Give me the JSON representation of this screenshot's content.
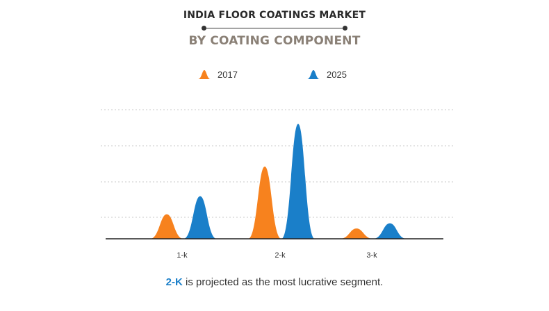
{
  "title": "INDIA FLOOR COATINGS MARKET",
  "subtitle": "BY COATING COMPONENT",
  "caption": {
    "highlight": "2-K",
    "text": " is projected as the most lucrative segment."
  },
  "colors": {
    "2017": "#f7821e",
    "2025": "#1a7fc9"
  },
  "chart_data": {
    "type": "area",
    "categories": [
      "1-k",
      "2-k",
      "3-k"
    ],
    "series": [
      {
        "name": "2017",
        "values": [
          0.19,
          0.56,
          0.08
        ]
      },
      {
        "name": "2025",
        "values": [
          0.33,
          0.89,
          0.12
        ]
      }
    ],
    "ylim": [
      0,
      1
    ],
    "grid": true,
    "legend": "top-center",
    "xlabel": "",
    "ylabel": ""
  }
}
